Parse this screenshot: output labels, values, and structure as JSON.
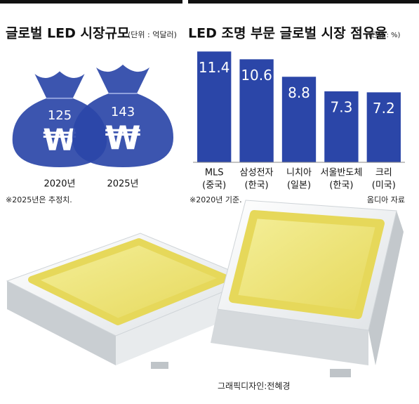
{
  "chart_data": [
    {
      "type": "pictograph",
      "title": "글로벌 LED 시장규모",
      "unit": "(단위 : 억달러)",
      "categories": [
        "2020년",
        "2025년"
      ],
      "values": [
        125,
        143
      ],
      "color": "#2b46a8",
      "note": "※2025년은 추정치."
    },
    {
      "type": "bar",
      "title": "LED 조명 부문 글로벌 시장 점유율",
      "unit": "(단위 : %)",
      "categories": [
        "MLS",
        "삼성전자",
        "니치아",
        "서울반도체",
        "크리"
      ],
      "sublabels": [
        "(중국)",
        "(한국)",
        "(일본)",
        "(한국)",
        "(미국)"
      ],
      "values": [
        11.4,
        10.6,
        8.8,
        7.3,
        7.2
      ],
      "color": "#2b46a8",
      "ylim": [
        0,
        12
      ],
      "note": "※2020년 기준.",
      "source": "옴디아 자료"
    }
  ],
  "credit": "그래픽디자인:전혜경"
}
